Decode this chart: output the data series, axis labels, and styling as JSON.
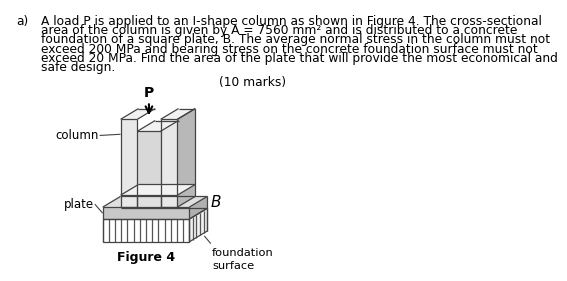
{
  "title_label": "a)",
  "line1": "A load P is applied to an I-shape column as shown in Figure 4. The cross-sectional",
  "line2": "area of the column is given by A = 7560 mm² and is distributed to a concrete",
  "line3": "foundation of a square plate, B. The average normal stress in the column must not",
  "line4": "exceed 200 MPa and bearing stress on the concrete foundation surface must not",
  "line5": "exceed 20 MPa. Find the area of the plate that will provide the most economical and",
  "line6": "safe design.",
  "marks_text": "(10 marks)",
  "figure_label": "Figure 4",
  "label_column": "column",
  "label_plate": "plate",
  "label_B": "B",
  "label_foundation": "foundation\nsurface",
  "label_P": "P",
  "bg_color": "#ffffff",
  "text_color": "#000000",
  "fig_width": 4.74,
  "fig_height": 4.29,
  "color_front_light": "#e8e8e8",
  "color_front_dark": "#d0d0d0",
  "color_side": "#b8b8b8",
  "color_top": "#f2f2f2",
  "color_plate_top": "#e0e0e0",
  "color_plate_front": "#c8c8c8",
  "color_plate_side": "#b0b0b0",
  "color_edge": "#444444"
}
